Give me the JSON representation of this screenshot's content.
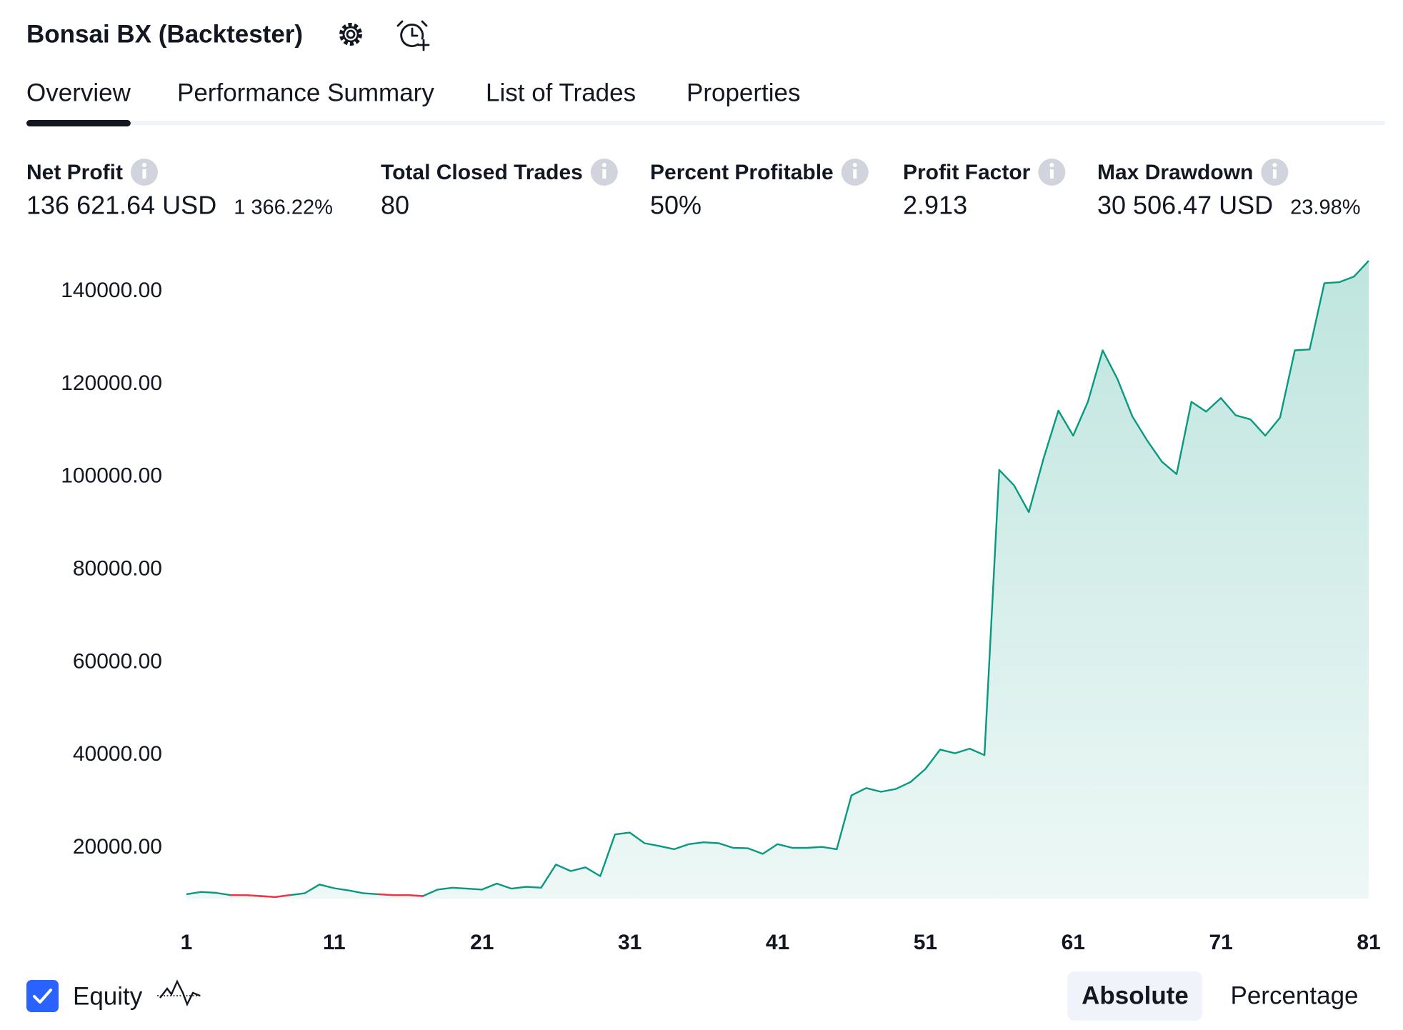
{
  "header": {
    "title": "Bonsai BX (Backtester)"
  },
  "tabs": [
    "Overview",
    "Performance Summary",
    "List of Trades",
    "Properties"
  ],
  "active_tab": 0,
  "stats": [
    {
      "label": "Net Profit",
      "value": "136 621.64 USD",
      "extra": "1 366.22%",
      "color": "#089981"
    },
    {
      "label": "Total Closed Trades",
      "value": "80",
      "color": "#131722"
    },
    {
      "label": "Percent Profitable",
      "value": "50%",
      "color": "#089981"
    },
    {
      "label": "Profit Factor",
      "value": "2.913",
      "color": "#089981"
    },
    {
      "label": "Max Drawdown",
      "value": "30 506.47 USD",
      "extra": "23.98%",
      "color": "#f23645"
    }
  ],
  "chart_data": {
    "type": "area",
    "x": [
      1,
      2,
      3,
      4,
      5,
      6,
      7,
      8,
      9,
      10,
      11,
      12,
      13,
      14,
      15,
      16,
      17,
      18,
      19,
      20,
      21,
      22,
      23,
      24,
      25,
      26,
      27,
      28,
      29,
      30,
      31,
      32,
      33,
      34,
      35,
      36,
      37,
      38,
      39,
      40,
      41,
      42,
      43,
      44,
      45,
      46,
      47,
      48,
      49,
      50,
      51,
      52,
      53,
      54,
      55,
      56,
      57,
      58,
      59,
      60,
      61,
      62,
      63,
      64,
      65,
      66,
      67,
      68,
      69,
      70,
      71,
      72,
      73,
      74,
      75,
      76,
      77,
      78,
      79,
      80,
      81
    ],
    "series": [
      {
        "name": "Equity",
        "color": "#089981",
        "below_start_color": "#f23645",
        "values": [
          10000,
          10500,
          10300,
          9800,
          9800,
          9600,
          9400,
          9800,
          10200,
          12100,
          11300,
          10800,
          10200,
          10000,
          9800,
          9800,
          9600,
          11000,
          11400,
          11200,
          11000,
          12300,
          11200,
          11600,
          11400,
          16400,
          15000,
          15800,
          13900,
          22900,
          23300,
          21000,
          20400,
          19700,
          20800,
          21200,
          21000,
          20000,
          19900,
          18700,
          20800,
          20000,
          20000,
          20200,
          19700,
          31300,
          32900,
          32100,
          32700,
          34200,
          37000,
          41200,
          40400,
          41400,
          40000,
          101500,
          98200,
          92400,
          104000,
          114300,
          108900,
          116200,
          127300,
          121100,
          113100,
          107900,
          103300,
          100600,
          116200,
          114100,
          117000,
          113300,
          112400,
          108900,
          112800,
          127300,
          127500,
          141800,
          142000,
          143200,
          146621.64
        ]
      }
    ],
    "xlim": [
      1,
      81
    ],
    "xticks": [
      1,
      11,
      21,
      31,
      41,
      51,
      61,
      71,
      81
    ],
    "ylim": [
      9000,
      147000
    ],
    "yticks": [
      {
        "value": 20000,
        "label": "20000.00"
      },
      {
        "value": 40000,
        "label": "40000.00"
      },
      {
        "value": 60000,
        "label": "60000.00"
      },
      {
        "value": 80000,
        "label": "80000.00"
      },
      {
        "value": 100000,
        "label": "100000.00"
      },
      {
        "value": 120000,
        "label": "120000.00"
      },
      {
        "value": 140000,
        "label": "140000.00"
      }
    ],
    "grid": false
  },
  "modes": [
    "Absolute",
    "Percentage"
  ],
  "active_mode": 0
}
